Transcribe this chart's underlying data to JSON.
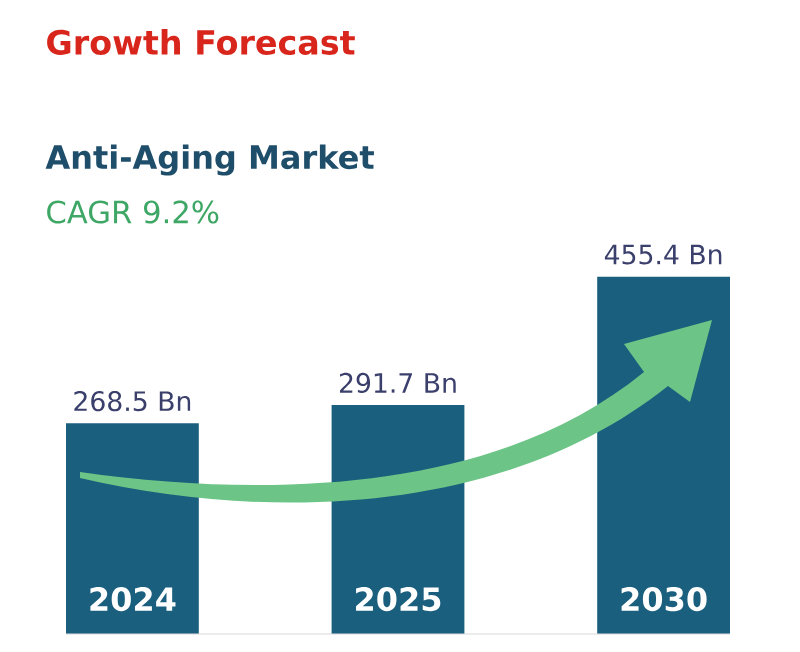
{
  "chart_data": {
    "type": "bar",
    "title": "Growth Forecast",
    "subtitle": "Anti-Aging Market",
    "annotations": [
      "CAGR 9.2%"
    ],
    "categories": [
      "2024",
      "2025",
      "2030"
    ],
    "values": [
      268.5,
      291.7,
      455.4
    ],
    "value_labels": [
      "268.5 Bn",
      "291.7 Bn",
      "455.4 Bn"
    ],
    "color": "#1b5f7e"
  }
}
